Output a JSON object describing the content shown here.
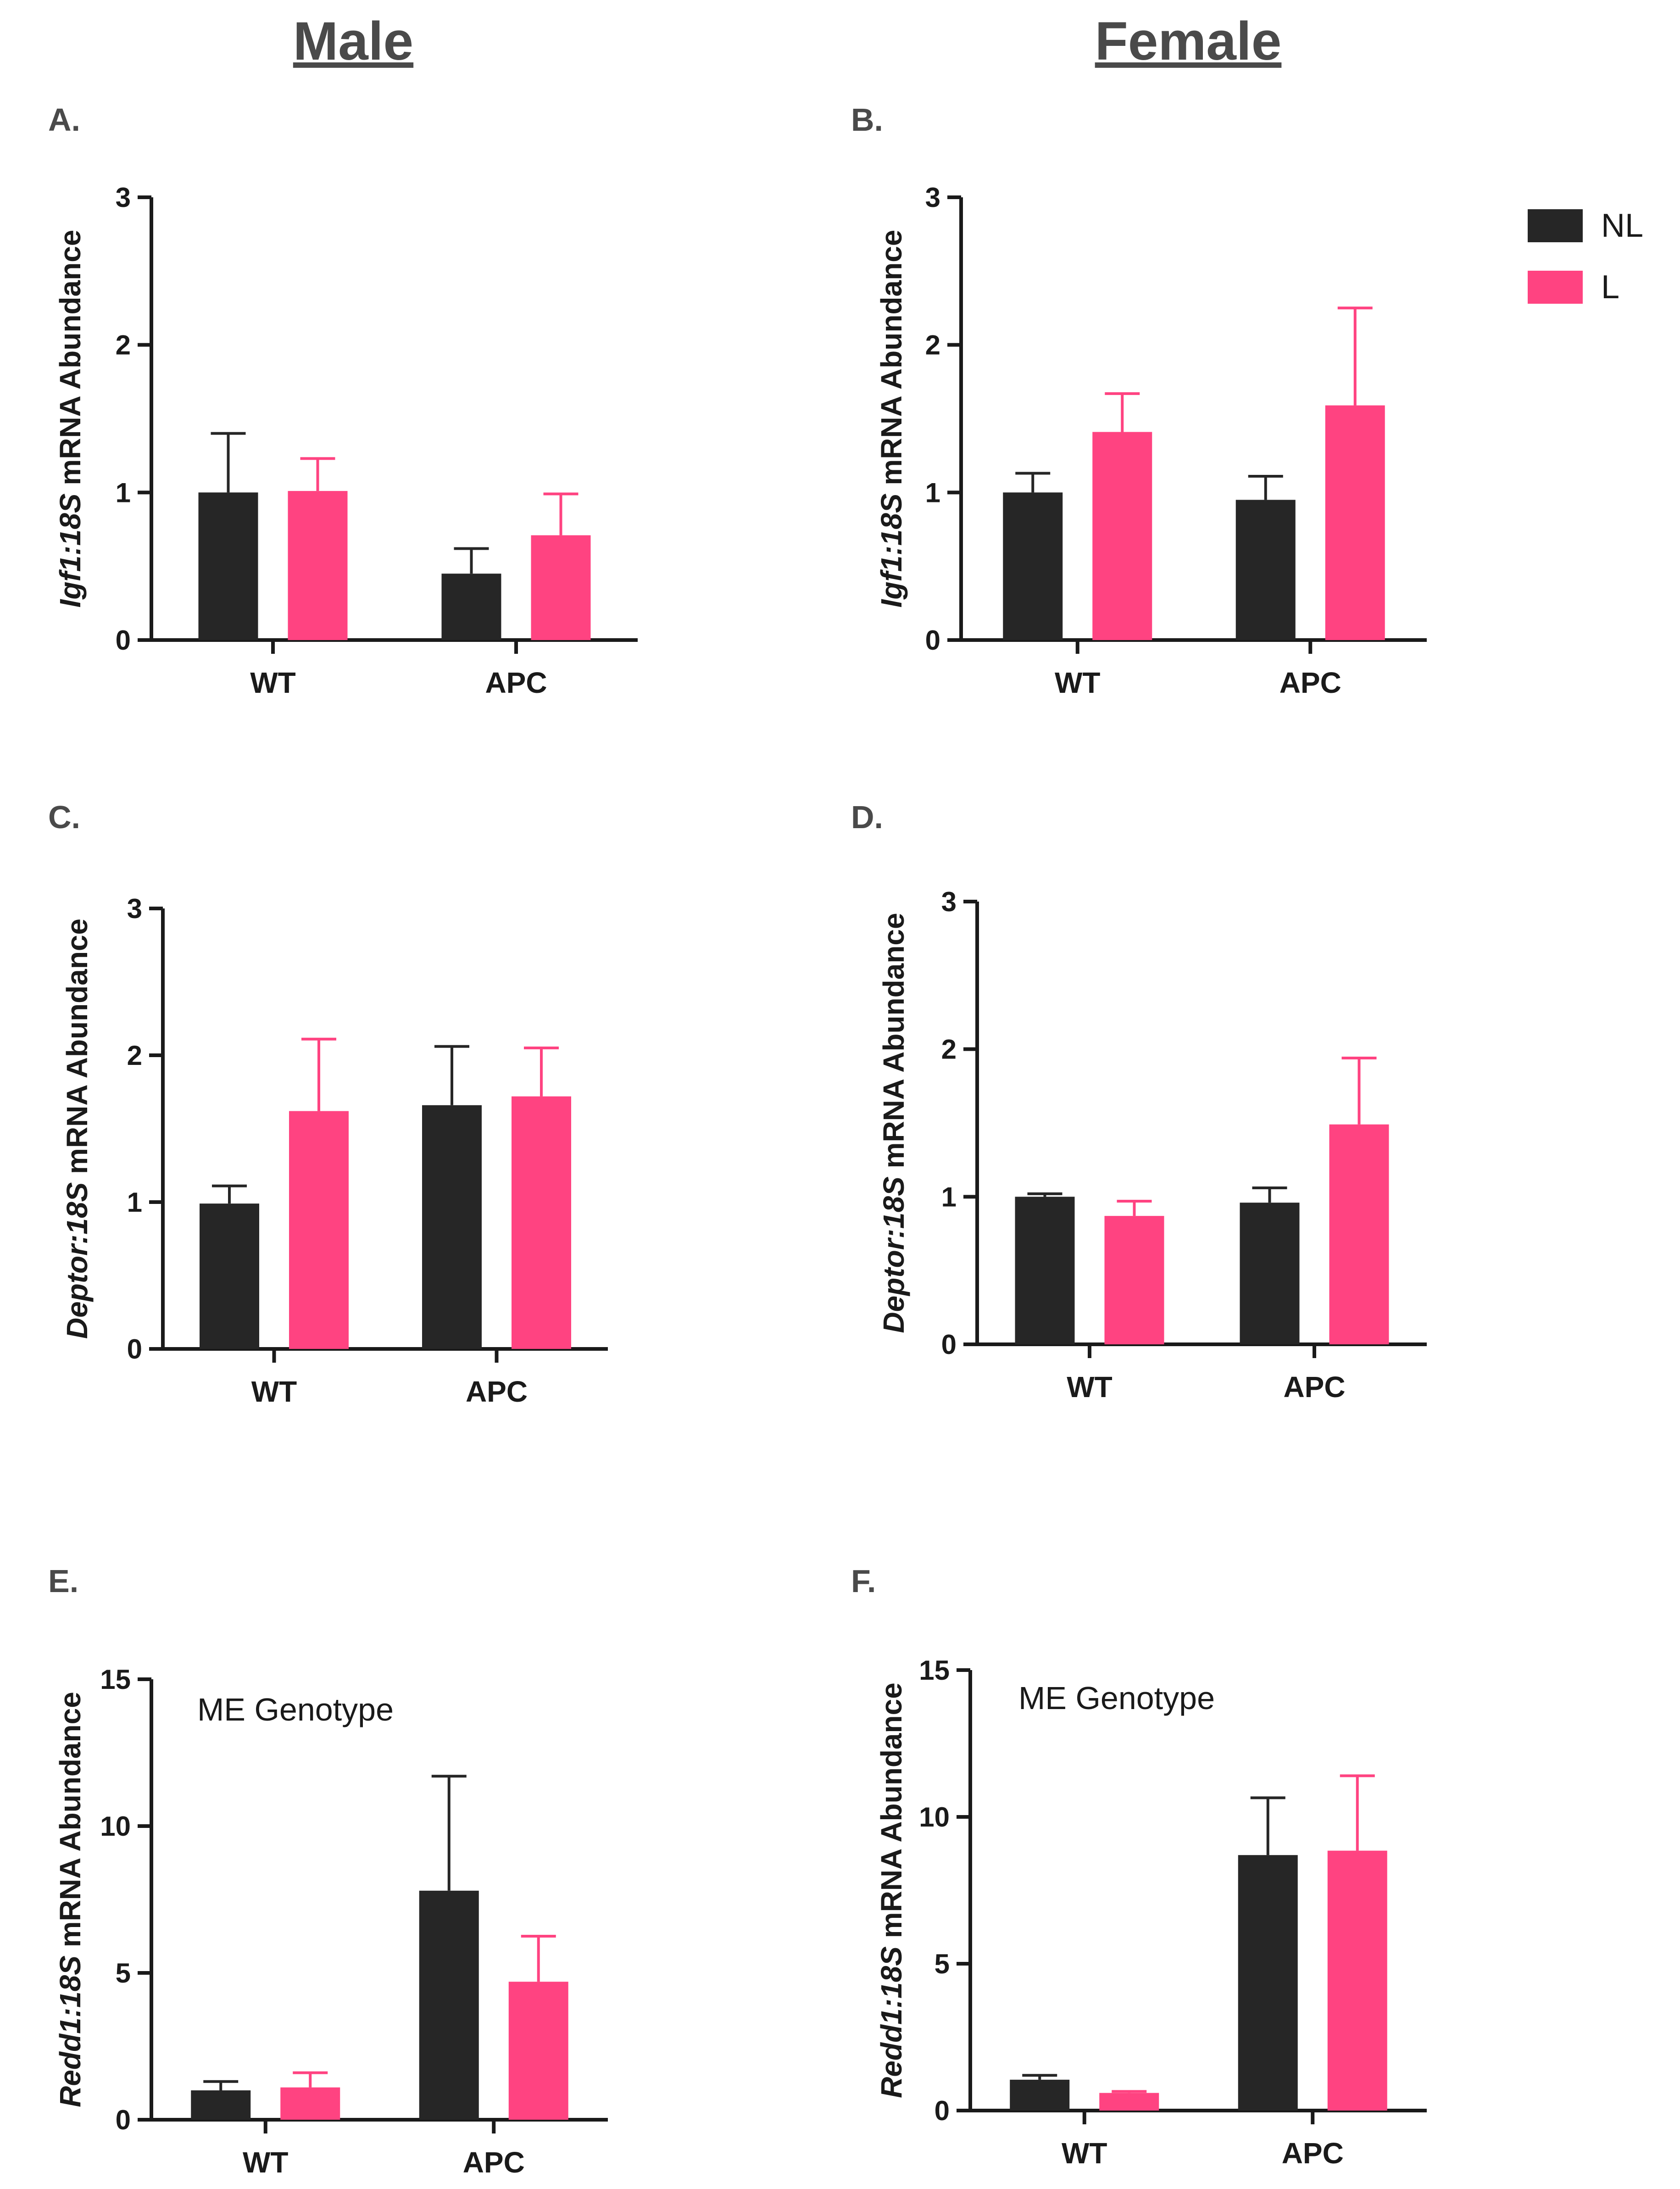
{
  "column_titles": {
    "male": "Male",
    "female": "Female"
  },
  "legend": [
    {
      "name": "NL",
      "color": "#262626"
    },
    {
      "name": "L",
      "color": "#ff4381"
    }
  ],
  "colors": {
    "NL": "#262626",
    "L": "#ff4381",
    "axis": "#1a1a1a",
    "title": "#4a4a4a"
  },
  "chart_data": [
    {
      "id": "A",
      "letter": "A.",
      "type": "bar",
      "gene": "Igf1:18S",
      "ylabel_rest": " mRNA Abundance",
      "categories": [
        "WT",
        "APC"
      ],
      "series": [
        {
          "name": "NL",
          "values": [
            1.0,
            0.45
          ],
          "errors": [
            0.4,
            0.17
          ]
        },
        {
          "name": "L",
          "values": [
            1.01,
            0.71
          ],
          "errors": [
            0.22,
            0.28
          ]
        }
      ],
      "ylim": [
        0,
        3
      ],
      "yticks": [
        0,
        1,
        2,
        3
      ],
      "annotation": ""
    },
    {
      "id": "B",
      "letter": "B.",
      "type": "bar",
      "gene": "Igf1:18S",
      "ylabel_rest": " mRNA Abundance",
      "categories": [
        "WT",
        "APC"
      ],
      "series": [
        {
          "name": "NL",
          "values": [
            1.0,
            0.95
          ],
          "errors": [
            0.13,
            0.16
          ]
        },
        {
          "name": "L",
          "values": [
            1.41,
            1.59
          ],
          "errors": [
            0.26,
            0.66
          ]
        }
      ],
      "ylim": [
        0,
        3
      ],
      "yticks": [
        0,
        1,
        2,
        3
      ],
      "annotation": ""
    },
    {
      "id": "C",
      "letter": "C.",
      "type": "bar",
      "gene": "Deptor:18S",
      "ylabel_rest": " mRNA  Abundance",
      "categories": [
        "WT",
        "APC"
      ],
      "series": [
        {
          "name": "NL",
          "values": [
            0.99,
            1.66
          ],
          "errors": [
            0.12,
            0.4
          ]
        },
        {
          "name": "L",
          "values": [
            1.62,
            1.72
          ],
          "errors": [
            0.49,
            0.33
          ]
        }
      ],
      "ylim": [
        0,
        3
      ],
      "yticks": [
        0,
        1,
        2,
        3
      ],
      "annotation": ""
    },
    {
      "id": "D",
      "letter": "D.",
      "type": "bar",
      "gene": "Deptor:18S",
      "ylabel_rest": " mRNA  Abundance",
      "categories": [
        "WT",
        "APC"
      ],
      "series": [
        {
          "name": "NL",
          "values": [
            1.0,
            0.96
          ],
          "errors": [
            0.02,
            0.1
          ]
        },
        {
          "name": "L",
          "values": [
            0.87,
            1.49
          ],
          "errors": [
            0.1,
            0.45
          ]
        }
      ],
      "ylim": [
        0,
        3
      ],
      "yticks": [
        0,
        1,
        2,
        3
      ],
      "annotation": ""
    },
    {
      "id": "E",
      "letter": "E.",
      "type": "bar",
      "gene": "Redd1:18S",
      "ylabel_rest": " mRNA Abundance",
      "categories": [
        "WT",
        "APC"
      ],
      "series": [
        {
          "name": "NL",
          "values": [
            1.0,
            7.8
          ],
          "errors": [
            0.3,
            3.9
          ]
        },
        {
          "name": "L",
          "values": [
            1.1,
            4.7
          ],
          "errors": [
            0.5,
            1.55
          ]
        }
      ],
      "ylim": [
        0,
        15
      ],
      "yticks": [
        0,
        5,
        10,
        15
      ],
      "annotation": "ME Genotype"
    },
    {
      "id": "F",
      "letter": "F.",
      "type": "bar",
      "gene": "Redd1:18S",
      "ylabel_rest": " mRNA Abundance",
      "categories": [
        "WT",
        "APC"
      ],
      "series": [
        {
          "name": "NL",
          "values": [
            1.05,
            8.7
          ],
          "errors": [
            0.15,
            1.95
          ]
        },
        {
          "name": "L",
          "values": [
            0.6,
            8.85
          ],
          "errors": [
            0.05,
            2.55
          ]
        }
      ],
      "ylim": [
        0,
        15
      ],
      "yticks": [
        0,
        5,
        10,
        15
      ],
      "annotation": "ME Genotype"
    }
  ]
}
